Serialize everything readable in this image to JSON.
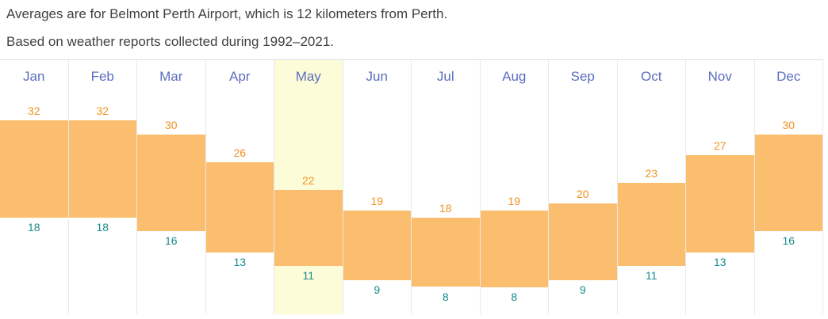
{
  "notes": {
    "station": "Averages are for Belmont Perth Airport, which is 12 kilometers from Perth.",
    "period": "Based on weather reports collected during 1992–2021."
  },
  "chart_data": {
    "type": "bar",
    "subtype": "floating-range-bars",
    "categories": [
      "Jan",
      "Feb",
      "Mar",
      "Apr",
      "May",
      "Jun",
      "Jul",
      "Aug",
      "Sep",
      "Oct",
      "Nov",
      "Dec"
    ],
    "series": [
      {
        "name": "High",
        "values": [
          32,
          32,
          30,
          26,
          22,
          19,
          18,
          19,
          20,
          23,
          27,
          30
        ]
      },
      {
        "name": "Low",
        "values": [
          18,
          18,
          16,
          13,
          11,
          9,
          8,
          8,
          9,
          11,
          13,
          16
        ]
      }
    ],
    "highlighted_month": "May",
    "value_range_shown": [
      8,
      32
    ],
    "gridlines": "none",
    "axes": "none — values labeled directly above and below each bar"
  },
  "colors": {
    "bar": "#fbbd6e",
    "high_label": "#f0921e",
    "low_label": "#1a8a8e",
    "month_label": "#5a6ebe",
    "highlight_bg": "#fcfcd9",
    "border": "#e9e9e9",
    "border_top": "#dcdcdc",
    "text": "#414141"
  }
}
